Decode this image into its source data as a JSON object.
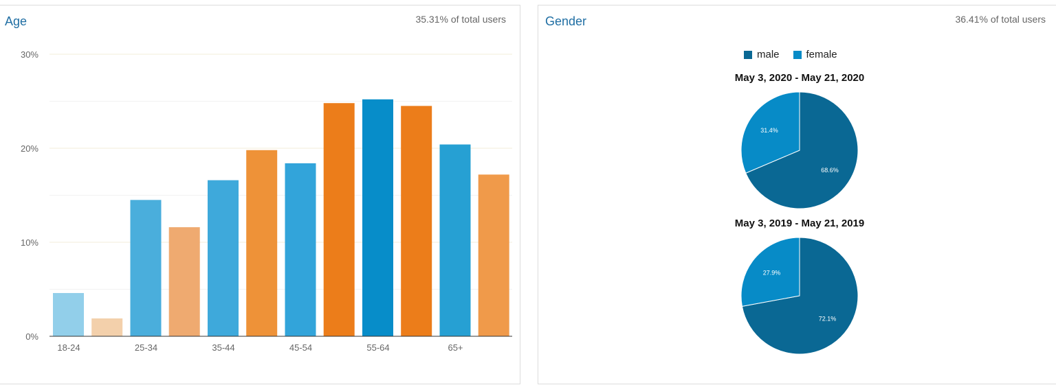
{
  "age_panel": {
    "title": "Age",
    "subtitle": "35.31% of total users"
  },
  "gender_panel": {
    "title": "Gender",
    "subtitle": "36.41% of total users"
  },
  "chart_data": [
    {
      "type": "bar",
      "title": "Age",
      "categories": [
        "18-24",
        "25-34",
        "35-44",
        "45-54",
        "55-64",
        "65+"
      ],
      "series": [
        {
          "values": [
            4.6,
            14.5,
            16.6,
            18.4,
            25.2,
            20.4
          ],
          "colors": [
            "#92cfea",
            "#4aaedc",
            "#3ea9db",
            "#32a4da",
            "#078dc9",
            "#26a0d3"
          ]
        },
        {
          "values": [
            1.9,
            11.6,
            19.8,
            24.8,
            24.5,
            17.2
          ],
          "colors": [
            "#f3d0ab",
            "#efaa70",
            "#ee9238",
            "#ec7d1a",
            "#ec7d1a",
            "#f09a4a"
          ]
        }
      ],
      "ylim": [
        0,
        30
      ],
      "yticks": [
        "0%",
        "10%",
        "20%",
        "30%"
      ],
      "grid": true
    },
    {
      "type": "pie",
      "title": "May 3, 2020 - May 21, 2020",
      "labels": [
        "male",
        "female"
      ],
      "values": [
        68.6,
        31.4
      ],
      "value_labels": [
        "68.6%",
        "31.4%"
      ],
      "colors": [
        "#0a6894",
        "#078bc7"
      ],
      "legend": "top"
    },
    {
      "type": "pie",
      "title": "May 3, 2019 - May 21, 2019",
      "labels": [
        "male",
        "female"
      ],
      "values": [
        72.1,
        27.9
      ],
      "value_labels": [
        "72.1%",
        "27.9%"
      ],
      "colors": [
        "#0a6894",
        "#078bc7"
      ],
      "legend": "top"
    }
  ]
}
